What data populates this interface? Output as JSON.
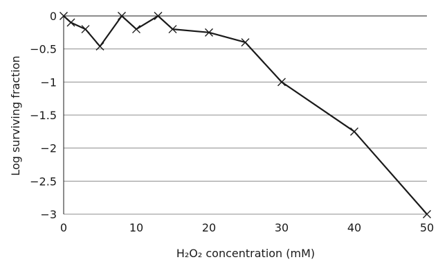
{
  "chart_data": {
    "type": "line",
    "title": "",
    "xlabel": "H₂O₂ concentration (mM)",
    "ylabel": "Log surviving fraction",
    "xlim": [
      0,
      50
    ],
    "ylim": [
      -3,
      0
    ],
    "x_ticks": [
      0,
      10,
      20,
      30,
      40,
      50
    ],
    "y_ticks": [
      0,
      -0.5,
      -1,
      -1.5,
      -2,
      -2.5,
      -3
    ],
    "x_tick_labels": [
      "0",
      "10",
      "20",
      "30",
      "40",
      "50"
    ],
    "y_tick_labels": [
      "0",
      "-0.5",
      "-1",
      "-1.5",
      "-2",
      "-2.5",
      "-3"
    ],
    "grid": "horizontal",
    "marker": "x",
    "series": [
      {
        "x": [
          0,
          1,
          3,
          5,
          8,
          10,
          13,
          15,
          20,
          25,
          30,
          40,
          50
        ],
        "y": [
          0,
          -0.1,
          -0.2,
          -0.46,
          0,
          -0.2,
          0,
          -0.2,
          -0.25,
          -0.4,
          -1.0,
          -1.75,
          -3.0
        ]
      }
    ],
    "colors": {
      "line": "#1a1a1a",
      "grid": "#8c8c8c",
      "axis": "#1a1a1a"
    }
  }
}
